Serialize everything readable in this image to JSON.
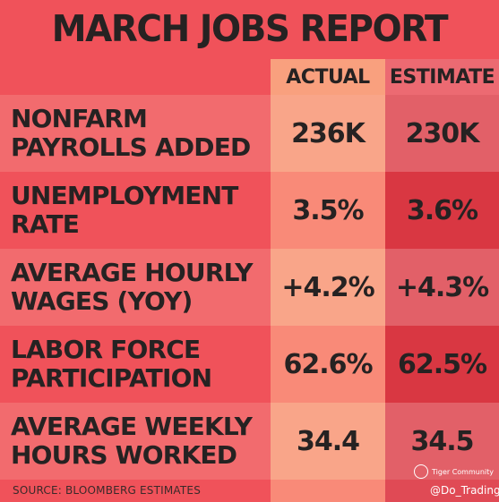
{
  "title": "MARCH JOBS REPORT",
  "columns": {
    "actual": "ACTUAL",
    "estimate": "ESTIMATE"
  },
  "rows": [
    {
      "label_line1": "NONFARM",
      "label_line2": "PAYROLLS ADDED",
      "actual": "236K",
      "estimate": "230K"
    },
    {
      "label_line1": "UNEMPLOYMENT",
      "label_line2": "RATE",
      "actual": "3.5%",
      "estimate": "3.6%"
    },
    {
      "label_line1": "AVERAGE HOURLY",
      "label_line2": "WAGES (YOY)",
      "actual": "+4.2%",
      "estimate": "+4.3%"
    },
    {
      "label_line1": "LABOR FORCE",
      "label_line2": "PARTICIPATION",
      "actual": "62.6%",
      "estimate": "62.5%"
    },
    {
      "label_line1": "AVERAGE WEEKLY",
      "label_line2": "HOURS WORKED",
      "actual": "34.4",
      "estimate": "34.5"
    }
  ],
  "source": "SOURCE: BLOOMBERG ESTIMATES",
  "watermark": {
    "brand": "Tiger Community",
    "handle": "@Do_Trading"
  },
  "colors": {
    "background": "#f0525a",
    "actual_column": "#f98a78",
    "estimate_column": "#d93742",
    "text": "#262222"
  }
}
